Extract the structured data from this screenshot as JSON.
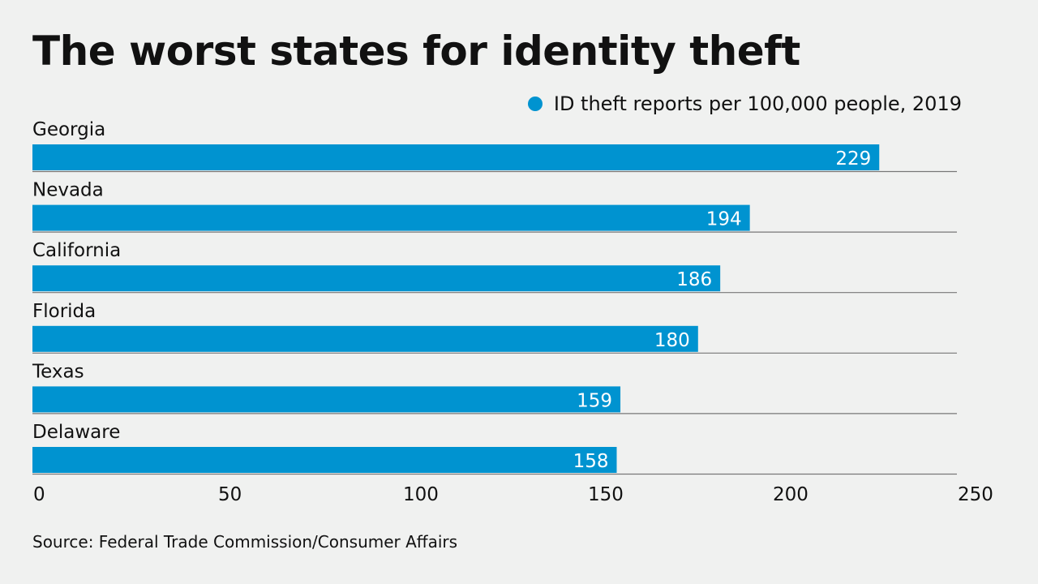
{
  "chart_data": {
    "type": "bar",
    "orientation": "horizontal",
    "title": "The worst states for identity theft",
    "legend": "ID theft reports per 100,000 people, 2019",
    "legend_position": "top-right",
    "categories": [
      "Georgia",
      "Nevada",
      "California",
      "Florida",
      "Texas",
      "Delaware"
    ],
    "values": [
      229,
      194,
      186,
      180,
      159,
      158
    ],
    "xlim": [
      0,
      250
    ],
    "xticks": [
      0,
      50,
      100,
      150,
      200,
      250
    ],
    "grid": false,
    "bar_color": "#0093d0",
    "source": "Source: Federal Trade Commission/Consumer Affairs"
  }
}
